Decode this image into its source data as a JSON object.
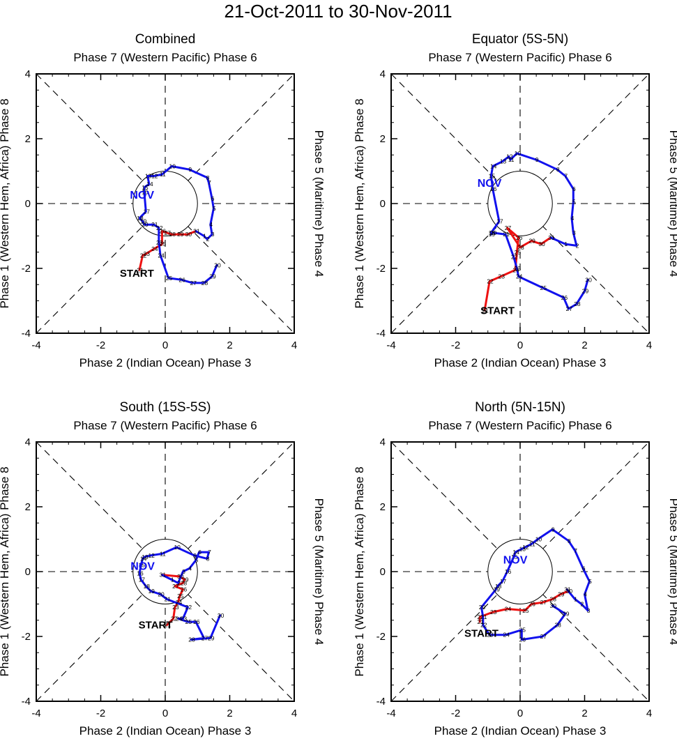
{
  "title": "21-Oct-2011 to 30-Nov-2011",
  "labels": {
    "top": "Phase 7 (Western Pacific) Phase 6",
    "bottom": "Phase 2 (Indian Ocean) Phase 3",
    "left": "Phase 1 (Western Hem, Africa) Phase 8",
    "right": "Phase 5 (Maritime) Phase 4",
    "start": "START",
    "month": "NOV"
  },
  "colors": {
    "october": "#ee1111",
    "november": "#1111ee",
    "axes": "#000000"
  },
  "chart_data": [
    {
      "type": "line",
      "title": "Combined",
      "xlim": [
        -4,
        4
      ],
      "ylim": [
        -4,
        4
      ],
      "xticks": [
        -4,
        -2,
        0,
        2,
        4
      ],
      "yticks": [
        -4,
        -2,
        0,
        2,
        4
      ],
      "unit_circle_radius": 1,
      "start_label_at": [
        -0.88,
        -2.15
      ],
      "month_label_at": [
        -0.72,
        0.28
      ],
      "series": [
        {
          "name": "October",
          "days": [
            21,
            22,
            23,
            24,
            25,
            26,
            27,
            28,
            29,
            30,
            31
          ],
          "x": [
            -0.8,
            -0.7,
            -0.6,
            -0.35,
            -0.1,
            -0.1,
            0.05,
            0.2,
            0.45,
            0.7,
            0.95
          ],
          "y": [
            -2.05,
            -1.6,
            -1.55,
            -1.4,
            -1.25,
            -0.85,
            -0.9,
            -0.95,
            -0.95,
            -0.95,
            -0.85
          ]
        },
        {
          "name": "November",
          "days": [
            31,
            1,
            2,
            3,
            4,
            5,
            6,
            7,
            8,
            9,
            10,
            11,
            12,
            13,
            14,
            15,
            16,
            17,
            18,
            19,
            20,
            21,
            22,
            23,
            24,
            25,
            26,
            27,
            28,
            29,
            30
          ],
          "x": [
            0.95,
            1.2,
            1.3,
            1.45,
            1.4,
            1.5,
            1.45,
            1.35,
            1.3,
            0.75,
            0.2,
            -0.1,
            -0.35,
            -0.55,
            -0.5,
            -0.65,
            -0.65,
            -0.6,
            -0.8,
            -0.7,
            -0.65,
            -0.35,
            -0.2,
            -0.2,
            -0.15,
            0.1,
            0.5,
            0.85,
            1.2,
            1.45,
            1.6
          ],
          "y": [
            -0.85,
            -1.0,
            -1.1,
            -0.95,
            -0.65,
            -0.15,
            0.15,
            0.65,
            0.8,
            1.05,
            1.15,
            0.9,
            0.85,
            0.85,
            0.6,
            0.5,
            0.35,
            -0.25,
            -0.45,
            -0.55,
            -0.65,
            -0.65,
            -0.75,
            -1.2,
            -1.6,
            -2.3,
            -2.35,
            -2.45,
            -2.45,
            -2.25,
            -1.9
          ]
        }
      ]
    },
    {
      "type": "line",
      "title": "Equator (5S-5N)",
      "xlim": [
        -4,
        4
      ],
      "ylim": [
        -4,
        4
      ],
      "xticks": [
        -4,
        -2,
        0,
        2,
        4
      ],
      "yticks": [
        -4,
        -2,
        0,
        2,
        4
      ],
      "unit_circle_radius": 1,
      "start_label_at": [
        -0.7,
        -3.3
      ],
      "month_label_at": [
        -0.95,
        0.65
      ],
      "series": [
        {
          "name": "October",
          "days": [
            21,
            22,
            23,
            24,
            25,
            26,
            27,
            28,
            29,
            30,
            31
          ],
          "x": [
            -1.1,
            -0.95,
            -0.6,
            -0.15,
            -0.1,
            -0.05,
            -0.4,
            0.0,
            0.35,
            0.65,
            0.95
          ],
          "y": [
            -3.3,
            -2.4,
            -2.25,
            -2.05,
            -1.5,
            -1.05,
            -0.75,
            -1.35,
            -1.15,
            -1.25,
            -1.05
          ]
        },
        {
          "name": "November",
          "days": [
            31,
            1,
            2,
            3,
            4,
            5,
            6,
            7,
            8,
            9,
            10,
            11,
            12,
            13,
            14,
            15,
            16,
            17,
            18,
            19,
            20,
            21,
            22,
            23,
            24,
            25,
            26,
            27,
            28,
            29,
            30
          ],
          "x": [
            0.95,
            1.4,
            1.75,
            1.65,
            1.6,
            1.65,
            1.65,
            1.4,
            1.15,
            0.5,
            -0.1,
            -0.3,
            -0.35,
            -0.55,
            -0.85,
            -0.9,
            -0.85,
            -0.65,
            -0.9,
            -0.9,
            -0.85,
            -0.45,
            -0.2,
            -0.1,
            -0.05,
            0.7,
            1.35,
            1.5,
            1.75,
            2.0,
            2.1
          ],
          "y": [
            -1.05,
            -1.25,
            -1.3,
            -0.9,
            -0.45,
            0.05,
            0.45,
            0.85,
            1.05,
            1.35,
            1.55,
            1.35,
            1.45,
            1.3,
            1.15,
            0.85,
            0.45,
            -0.55,
            -0.9,
            -0.95,
            -0.9,
            -0.95,
            -1.65,
            -2.0,
            -2.25,
            -2.6,
            -2.9,
            -3.25,
            -3.1,
            -2.7,
            -2.35
          ]
        }
      ]
    },
    {
      "type": "line",
      "title": "South (15S-5S)",
      "xlim": [
        -4,
        4
      ],
      "ylim": [
        -4,
        4
      ],
      "xticks": [
        -4,
        -2,
        0,
        2,
        4
      ],
      "yticks": [
        -4,
        -2,
        0,
        2,
        4
      ],
      "unit_circle_radius": 1,
      "start_label_at": [
        -0.3,
        -1.65
      ],
      "month_label_at": [
        -0.7,
        0.18
      ],
      "series": [
        {
          "name": "October",
          "days": [
            21,
            22,
            23,
            24,
            25,
            26,
            27,
            28,
            29,
            30,
            31
          ],
          "x": [
            0.05,
            0.25,
            0.3,
            0.4,
            0.45,
            0.55,
            0.3,
            0.55,
            0.6,
            0.45,
            -0.1
          ],
          "y": [
            -1.65,
            -1.45,
            -1.1,
            -0.95,
            -0.75,
            -0.55,
            -0.45,
            -0.35,
            -0.25,
            -0.15,
            -0.1
          ]
        },
        {
          "name": "November",
          "days": [
            31,
            1,
            2,
            3,
            4,
            5,
            6,
            7,
            8,
            9,
            10,
            11,
            12,
            13,
            14,
            15,
            16,
            17,
            18,
            19,
            20,
            21,
            22,
            23,
            24,
            25,
            26,
            27,
            28,
            29,
            30
          ],
          "x": [
            -0.1,
            0.2,
            0.4,
            0.55,
            0.75,
            0.95,
            1.05,
            1.35,
            1.3,
            0.9,
            0.35,
            -0.1,
            -0.45,
            -0.65,
            -0.7,
            -0.75,
            -0.8,
            -0.75,
            -0.6,
            -0.45,
            -0.15,
            0.05,
            0.7,
            0.55,
            0.4,
            0.7,
            0.95,
            1.2,
            0.8,
            1.4,
            1.7
          ],
          "y": [
            -0.1,
            -0.25,
            -0.35,
            0.0,
            0.1,
            0.35,
            0.6,
            0.6,
            0.4,
            0.5,
            0.75,
            0.55,
            0.5,
            0.45,
            0.4,
            0.2,
            -0.05,
            -0.25,
            -0.45,
            -0.6,
            -0.7,
            -0.85,
            -1.1,
            -1.45,
            -1.45,
            -1.55,
            -1.55,
            -2.05,
            -2.1,
            -2.05,
            -1.35
          ]
        }
      ]
    },
    {
      "type": "line",
      "title": "North (5N-15N)",
      "xlim": [
        -4,
        4
      ],
      "ylim": [
        -4,
        4
      ],
      "xticks": [
        -4,
        -2,
        0,
        2,
        4
      ],
      "yticks": [
        -4,
        -2,
        0,
        2,
        4
      ],
      "unit_circle_radius": 1,
      "start_label_at": [
        -1.2,
        -1.9
      ],
      "month_label_at": [
        -0.15,
        0.38
      ],
      "series": [
        {
          "name": "October",
          "days": [
            21,
            22,
            23,
            24,
            25,
            26,
            27,
            28,
            29,
            30,
            31
          ],
          "x": [
            -1.25,
            -1.25,
            -0.85,
            -0.4,
            0.15,
            0.35,
            0.7,
            1.0,
            1.25,
            1.5,
            1.45
          ],
          "y": [
            -1.55,
            -1.4,
            -1.25,
            -1.15,
            -1.2,
            -1.0,
            -0.95,
            -0.85,
            -0.7,
            -0.6,
            -0.55
          ]
        },
        {
          "name": "November",
          "days": [
            31,
            1,
            2,
            3,
            4,
            5,
            6,
            7,
            8,
            9,
            10,
            11,
            12,
            13,
            14,
            15,
            16,
            17,
            18,
            19,
            20,
            21,
            22,
            23,
            24,
            25,
            26,
            27,
            28,
            29,
            30
          ],
          "x": [
            1.45,
            1.7,
            1.9,
            2.1,
            2.0,
            2.15,
            1.95,
            1.7,
            1.5,
            1.0,
            0.55,
            0.35,
            0.15,
            0.05,
            -0.15,
            -0.2,
            -0.4,
            -0.55,
            -0.7,
            -0.75,
            -1.2,
            -1.15,
            -1.15,
            -0.95,
            -0.45,
            0.05,
            0.05,
            0.7,
            1.15,
            1.4,
            1.0
          ],
          "y": [
            -0.55,
            -0.85,
            -1.0,
            -1.2,
            -0.7,
            -0.3,
            0.1,
            0.65,
            0.95,
            1.3,
            1.0,
            0.85,
            0.75,
            0.7,
            0.6,
            0.45,
            0.0,
            -0.3,
            -0.45,
            -0.55,
            -1.1,
            -1.4,
            -1.65,
            -1.95,
            -1.95,
            -1.8,
            -2.1,
            -2.0,
            -1.65,
            -1.3,
            -1.05
          ]
        }
      ]
    }
  ]
}
